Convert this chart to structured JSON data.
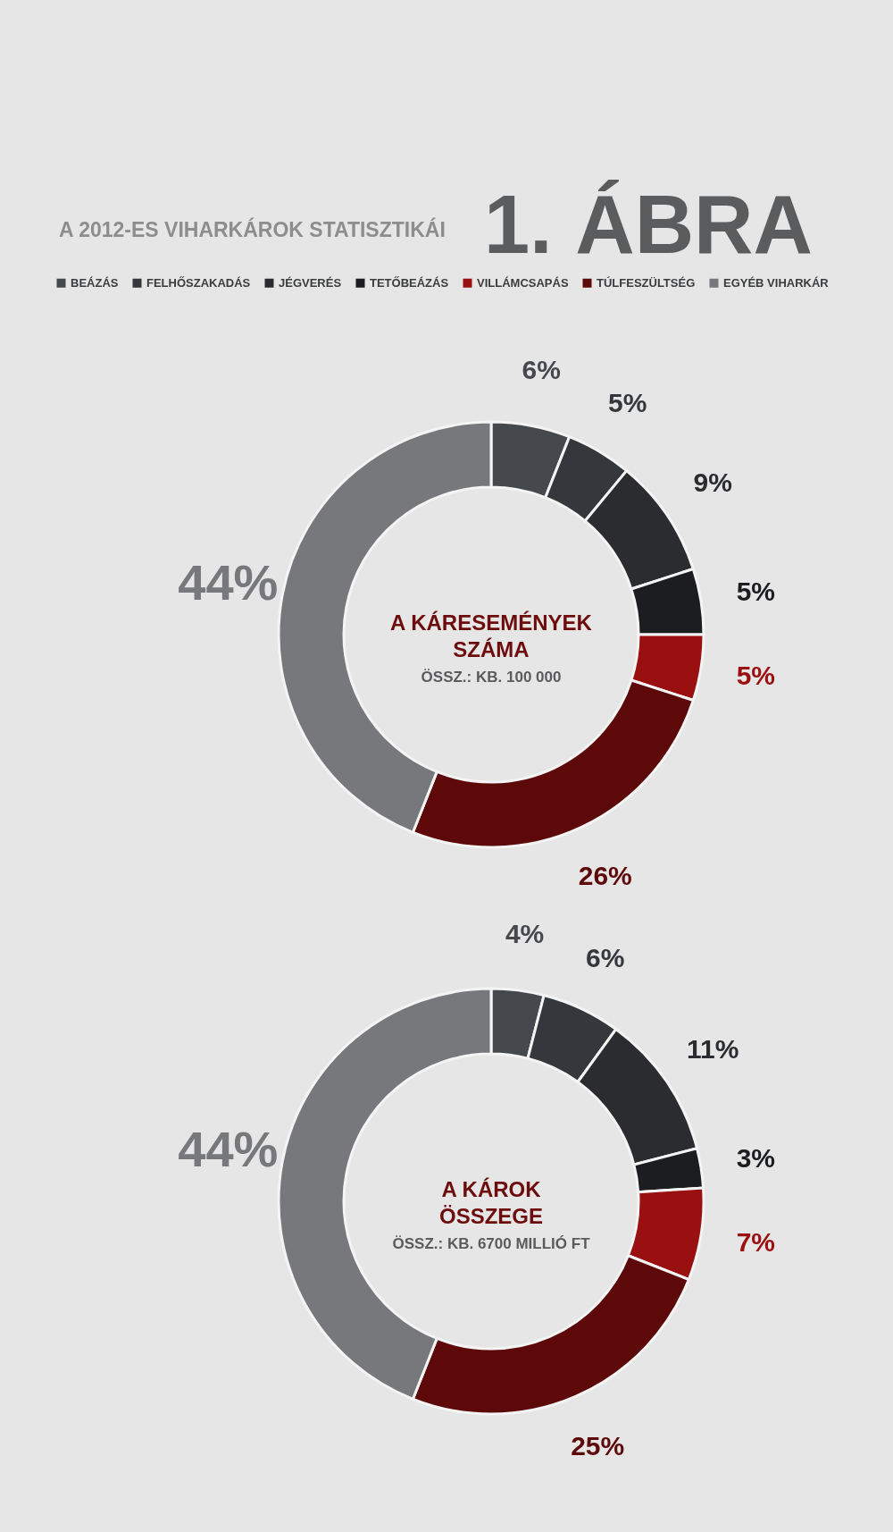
{
  "chart_data": [
    {
      "type": "donut",
      "title": "A KÁRESEMÉNYEK SZÁMA",
      "subtitle": "ÖSSZ.: KB. 100 000",
      "annotations": [
        "1. ÁBRA",
        "A 2012-ES VIHARKÁROK STATISZTIKÁI"
      ],
      "categories": [
        "BEÁZÁS",
        "FELHŐSZAKADÁS",
        "JÉGVERÉS",
        "TETŐBEÁZÁS",
        "VILLÁMCSAPÁS",
        "TÚLFESZÜLTSÉG",
        "EGYÉB VIHARKÁR"
      ],
      "values": [
        6,
        5,
        9,
        5,
        5,
        26,
        44
      ],
      "value_labels": [
        "6%",
        "5%",
        "9%",
        "5%",
        "5%",
        "26%",
        "44%"
      ],
      "colors": [
        "#45484d",
        "#34373b",
        "#2a2c30",
        "#1c1d20",
        "#9a0f0f",
        "#5e0909",
        "#77787b"
      ],
      "legend": "top"
    },
    {
      "type": "donut",
      "title": "A KÁROK ÖSSZEGE",
      "subtitle": "ÖSSZ.: KB. 6700 MILLIÓ FT",
      "categories": [
        null,
        null,
        null,
        null,
        null,
        null,
        null
      ],
      "values": [
        4,
        6,
        11,
        3,
        7,
        25,
        44
      ],
      "value_labels": [
        "4%",
        "6%",
        "11%",
        "3%",
        "7%",
        "25%",
        "44%"
      ],
      "colors": [
        "#45484d",
        "#34373b",
        "#2a2c30",
        "#1c1d20",
        "#9a0f0f",
        "#5e0909",
        "#77787b"
      ]
    }
  ]
}
